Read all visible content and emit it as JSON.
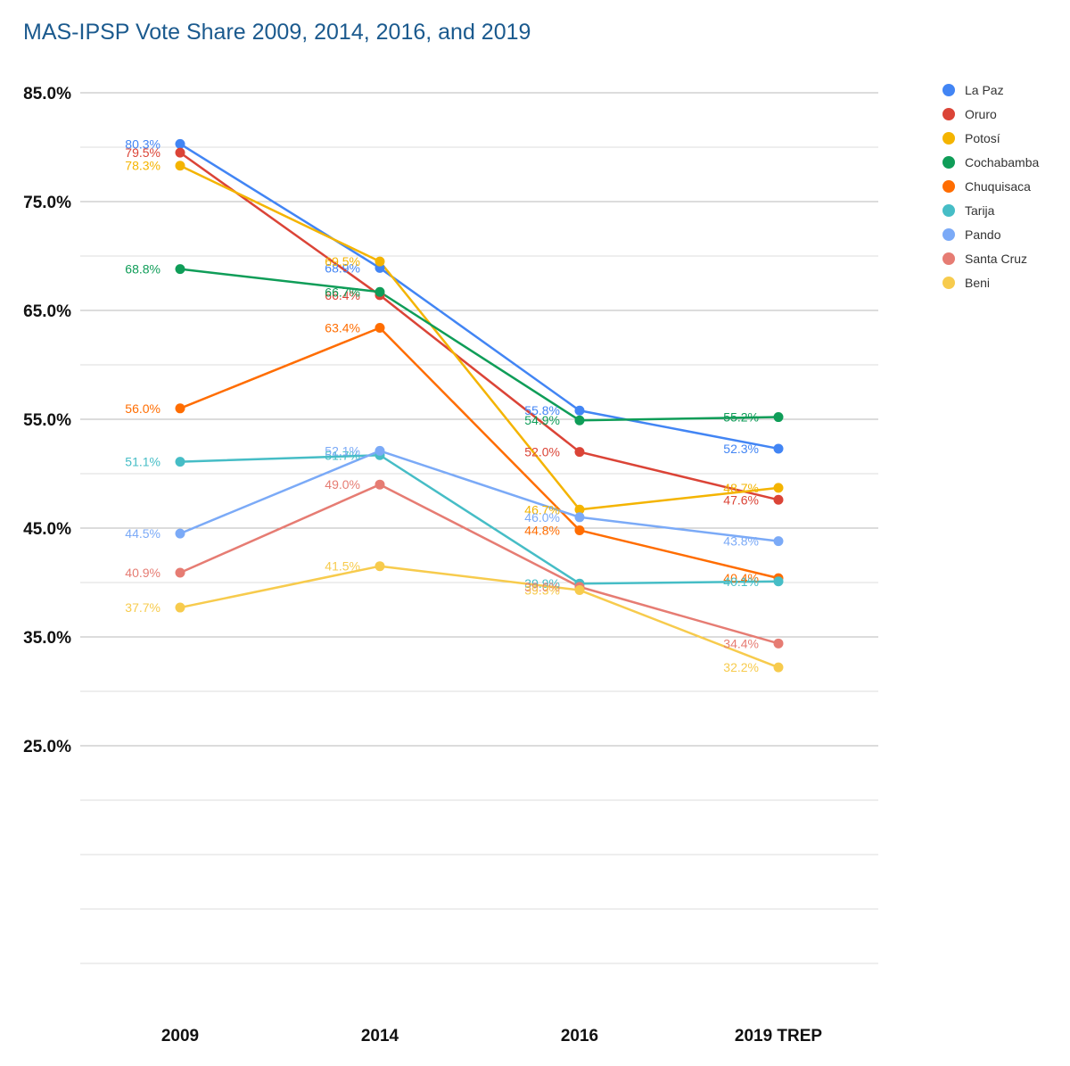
{
  "chart_data": {
    "type": "line",
    "title": "MAS-IPSP Vote Share 2009, 2014, 2016, and 2019",
    "xlabel": "",
    "ylabel": "",
    "categories": [
      "2009",
      "2014",
      "2016",
      "2019 TREP"
    ],
    "ylim": [
      5,
      85
    ],
    "yticks": [
      "85.0%",
      "75.0%",
      "65.0%",
      "55.0%",
      "45.0%",
      "35.0%",
      "25.0%"
    ],
    "ytick_values": [
      85,
      75,
      65,
      55,
      45,
      35,
      25
    ],
    "grid": true,
    "legend_position": "right",
    "series": [
      {
        "name": "La Paz",
        "color": "#4285f4",
        "values": [
          80.3,
          68.9,
          55.8,
          52.3
        ],
        "labels": [
          "80.3%",
          "68.9%",
          "55.8%",
          "52.3%"
        ]
      },
      {
        "name": "Oruro",
        "color": "#db4437",
        "values": [
          79.5,
          66.4,
          52.0,
          47.6
        ],
        "labels": [
          "79.5%",
          "66.4%",
          "52.0%",
          "47.6%"
        ]
      },
      {
        "name": "Potosí",
        "color": "#f4b400",
        "values": [
          78.3,
          69.5,
          46.7,
          48.7
        ],
        "labels": [
          "78.3%",
          "69.5%",
          "46.7%",
          "48.7%"
        ]
      },
      {
        "name": "Cochabamba",
        "color": "#0f9d58",
        "values": [
          68.8,
          66.7,
          54.9,
          55.2
        ],
        "labels": [
          "68.8%",
          "66.7%",
          "54.9%",
          "55.2%"
        ]
      },
      {
        "name": "Chuquisaca",
        "color": "#ff6d01",
        "values": [
          56.0,
          63.4,
          44.8,
          40.4
        ],
        "labels": [
          "56.0%",
          "63.4%",
          "44.8%",
          "40.4%"
        ]
      },
      {
        "name": "Tarija",
        "color": "#46bdc6",
        "values": [
          51.1,
          51.7,
          39.9,
          40.1
        ],
        "labels": [
          "51.1%",
          "51.7%",
          "39.9%",
          "40.1%"
        ]
      },
      {
        "name": "Pando",
        "color": "#7baaf7",
        "values": [
          44.5,
          52.1,
          46.0,
          43.8
        ],
        "labels": [
          "44.5%",
          "52.1%",
          "46.0%",
          "43.8%"
        ]
      },
      {
        "name": "Santa Cruz",
        "color": "#e67c73",
        "values": [
          40.9,
          49.0,
          39.6,
          34.4
        ],
        "labels": [
          "40.9%",
          "49.0%",
          "39.6%",
          "34.4%"
        ]
      },
      {
        "name": "Beni",
        "color": "#f7cb4d",
        "values": [
          37.7,
          41.5,
          39.3,
          32.2
        ],
        "labels": [
          "37.7%",
          "41.5%",
          "39.3%",
          "32.2%"
        ]
      }
    ]
  }
}
